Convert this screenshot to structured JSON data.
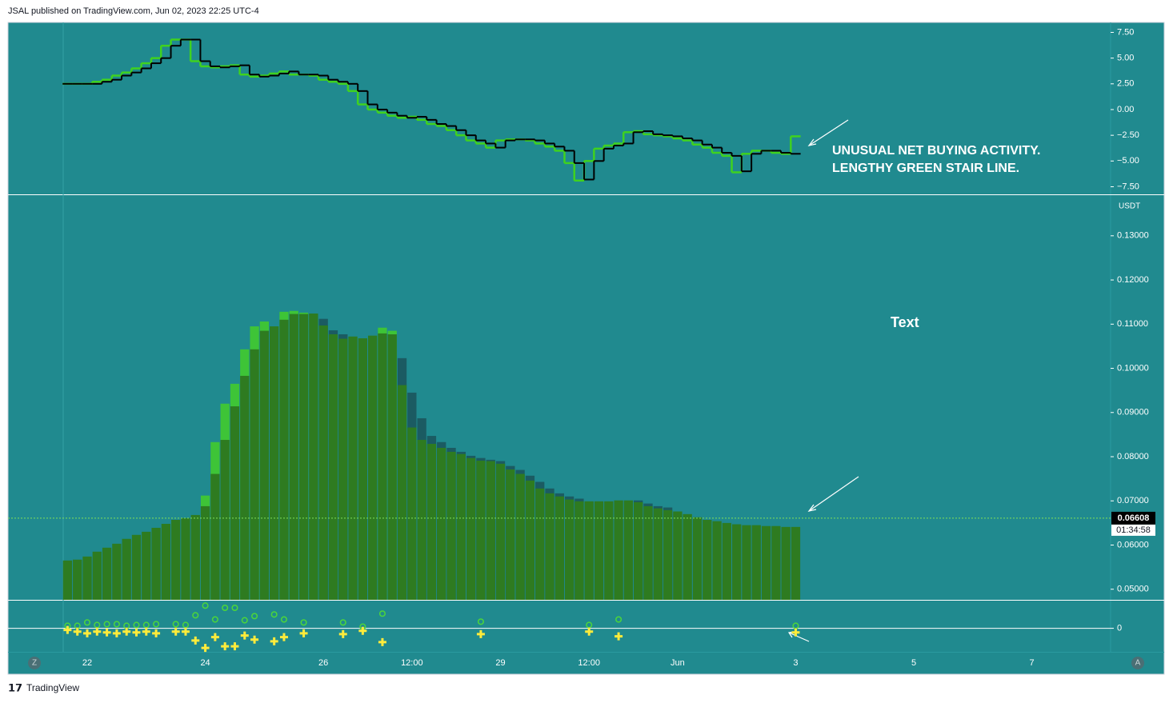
{
  "header": "JSAL published on TradingView.com, Jun 02, 2023 22:25 UTC-4",
  "footer": "TradingView",
  "buttons": [
    "Z",
    "A"
  ],
  "chart_data": [
    {
      "type": "step",
      "annotations": [
        "UNUSUAL NET BUYING ACTIVITY.",
        "LENGTHY GREEN STAIR LINE."
      ],
      "ylim": [
        -8.24,
        8.47
      ],
      "yticks": [
        {
          "value": 7.5,
          "label": "7.50"
        },
        {
          "value": 5,
          "label": "5.00"
        },
        {
          "value": 2.5,
          "label": "2.50"
        },
        {
          "value": 0,
          "label": "0.00"
        },
        {
          "value": -2.5,
          "label": "−2.50"
        },
        {
          "value": -5,
          "label": "−5.00"
        },
        {
          "value": -7.5,
          "label": "−7.50"
        }
      ],
      "series": [
        {
          "color": "#3fd21f",
          "values": [
            2.5,
            2.5,
            2.5,
            2.7,
            2.9,
            3.3,
            3.6,
            4.0,
            4.5,
            5.0,
            6.2,
            6.8,
            6.8,
            4.7,
            4.2,
            4.1,
            4.2,
            4.3,
            3.4,
            3.2,
            3.3,
            3.5,
            3.7,
            3.4,
            3.4,
            3.3,
            2.9,
            2.7,
            2.5,
            1.8,
            0.5,
            0,
            -0.3,
            -0.6,
            -0.8,
            -0.7,
            -1.0,
            -1.4,
            -1.6,
            -2.0,
            -2.5,
            -3.0,
            -3.3,
            -3.7,
            -3.0,
            -2.9,
            -2.9,
            -3.0,
            -3.3,
            -3.6,
            -4.0,
            -5.2,
            -6.9,
            -5.0,
            -3.8,
            -3.5,
            -3.3,
            -2.2,
            -2.1,
            -2.4,
            -2.5,
            -2.6,
            -2.8,
            -3.0,
            -3.4,
            -3.7,
            -4.2,
            -4.5,
            -6.1,
            -4.3,
            -4.0,
            -4.0,
            -4.2,
            -4.3,
            -2.6
          ]
        },
        {
          "color": "#000000",
          "values": [
            2.5,
            2.5,
            2.5,
            2.5,
            2.7,
            2.9,
            3.3,
            3.6,
            4.0,
            4.5,
            5.0,
            6.2,
            6.8,
            6.8,
            4.7,
            4.2,
            4.1,
            4.2,
            4.3,
            3.4,
            3.2,
            3.3,
            3.5,
            3.7,
            3.4,
            3.4,
            3.3,
            2.9,
            2.7,
            2.5,
            1.8,
            0.5,
            0,
            -0.3,
            -0.6,
            -0.8,
            -0.7,
            -1.0,
            -1.4,
            -1.6,
            -2.0,
            -2.5,
            -3.0,
            -3.3,
            -3.7,
            -3.0,
            -2.9,
            -2.9,
            -3.0,
            -3.3,
            -3.6,
            -4.0,
            -5.2,
            -6.8,
            -5.0,
            -3.8,
            -3.5,
            -3.3,
            -2.2,
            -2.1,
            -2.4,
            -2.5,
            -2.6,
            -2.8,
            -3.0,
            -3.4,
            -3.7,
            -4.2,
            -4.5,
            -6.0,
            -4.3,
            -4.0,
            -4.0,
            -4.2,
            -4.3
          ]
        }
      ]
    },
    {
      "type": "bar",
      "annotations": [
        "Text"
      ],
      "y_unit": "USDT",
      "ylim": [
        0.0476,
        0.1392
      ],
      "yticks": [
        {
          "value": 0.05,
          "label": "0.05000"
        },
        {
          "value": 0.06,
          "label": "0.06000"
        },
        {
          "value": 0.07,
          "label": "0.07000"
        },
        {
          "value": 0.08,
          "label": "0.08000"
        },
        {
          "value": 0.09,
          "label": "0.09000"
        },
        {
          "value": 0.1,
          "label": "0.10000"
        },
        {
          "value": 0.11,
          "label": "0.11000"
        },
        {
          "value": 0.12,
          "label": "0.12000"
        },
        {
          "value": 0.13,
          "label": "0.13000"
        }
      ],
      "last_value": 0.06608,
      "countdown": "01:34:58",
      "series": [
        {
          "values": [
            null,
            null,
            null,
            null,
            null,
            null,
            null,
            null,
            null,
            null,
            null,
            null,
            null,
            null,
            0.0712,
            0.0833,
            0.092,
            0.0965,
            0.1043,
            0.1095,
            0.1106,
            null,
            0.1128,
            0.113,
            0.1126,
            null,
            0.1112,
            0.1086,
            0.1077,
            null,
            null,
            null,
            0.1092,
            0.1085,
            0.1023,
            0.0945,
            0.0887,
            0.0847,
            0.0833,
            0.082,
            0.0811,
            0.0802,
            0.0797,
            0.0793,
            0.079,
            0.0779,
            0.077,
            0.0757,
            0.0743,
            0.0728,
            0.0717,
            0.071,
            0.0705,
            null,
            null,
            null,
            null,
            null,
            0.0701,
            0.0694,
            0.0688,
            0.0685,
            null,
            null,
            null,
            null,
            null,
            null,
            null,
            null,
            null,
            null,
            null,
            null,
            null
          ],
          "colors": [
            null,
            null,
            null,
            null,
            null,
            null,
            null,
            null,
            null,
            null,
            null,
            null,
            null,
            null,
            "#3ec437",
            "#3ec437",
            "#3ec437",
            "#3ec437",
            "#3ec437",
            "#3ec437",
            "#3ec437",
            null,
            "#3ec437",
            "#3ec437",
            "#3ec437",
            null,
            "#1b5b62",
            "#1b5b62",
            "#1b5b62",
            null,
            null,
            null,
            "#3ec437",
            "#3ec437",
            "#1b5b62",
            "#1b5b62",
            "#1b5b62",
            "#1b5b62",
            "#1b5b62",
            "#1b5b62",
            "#1b5b62",
            "#1b5b62",
            "#1b5b62",
            "#1b5b62",
            "#1b5b62",
            "#1b5b62",
            "#1b5b62",
            "#1b5b62",
            "#1b5b62",
            "#1b5b62",
            "#1b5b62",
            "#1b5b62",
            "#1b5b62",
            null,
            null,
            null,
            null,
            null,
            "#1b5b62",
            "#1b5b62",
            "#1b5b62",
            "#1b5b62",
            null,
            null,
            null,
            null,
            null,
            null,
            null,
            null,
            null,
            null,
            null,
            null,
            null
          ]
        },
        {
          "color": "#2e7b20",
          "values": [
            0.0565,
            0.0567,
            0.0574,
            0.0585,
            0.0594,
            0.0603,
            0.0614,
            0.0623,
            0.063,
            0.0639,
            0.0648,
            0.0657,
            0.0661,
            0.0668,
            0.0688,
            0.0761,
            0.0838,
            0.0914,
            0.0983,
            0.1043,
            0.1085,
            0.1095,
            0.111,
            0.1123,
            0.1123,
            0.1124,
            0.1097,
            0.1077,
            0.1067,
            0.1072,
            0.1068,
            0.1074,
            0.1079,
            0.1077,
            0.0962,
            0.0866,
            0.0838,
            0.0829,
            0.082,
            0.0811,
            0.0806,
            0.0797,
            0.0791,
            0.079,
            0.0784,
            0.0771,
            0.0761,
            0.0746,
            0.0728,
            0.0717,
            0.071,
            0.0703,
            0.0699,
            0.0699,
            0.0699,
            0.0699,
            0.0701,
            0.0701,
            0.0697,
            0.0688,
            0.0683,
            0.0679,
            0.0676,
            0.067,
            0.0663,
            0.0657,
            0.0654,
            0.065,
            0.0647,
            0.0645,
            0.0645,
            0.0643,
            0.0643,
            0.0641,
            0.0641
          ]
        }
      ]
    },
    {
      "type": "scatter",
      "ylim": [
        -0.85,
        1
      ],
      "yticks": [
        0
      ],
      "xlim": [
        -6.05,
        106
      ],
      "xticks": [
        {
          "value": 2,
          "label": "22"
        },
        {
          "value": 14,
          "label": "24"
        },
        {
          "value": 26,
          "label": "26"
        },
        {
          "value": 35,
          "label": "12:00"
        },
        {
          "value": 44,
          "label": "29"
        },
        {
          "value": 53,
          "label": "12:00"
        },
        {
          "value": 62,
          "label": "Jun"
        },
        {
          "value": 74,
          "label": "3"
        },
        {
          "value": 86,
          "label": "5"
        },
        {
          "value": 98,
          "label": "7"
        }
      ],
      "series": [
        {
          "marker": "circle",
          "color": "#4cd63a",
          "values": [
            0.09,
            0.09,
            0.21,
            0.12,
            0.15,
            0.15,
            0.09,
            0.12,
            0.12,
            0.15,
            null,
            0.15,
            0.12,
            0.47,
            0.82,
            0.32,
            0.74,
            0.74,
            0.29,
            0.44,
            null,
            0.5,
            0.32,
            null,
            0.21,
            null,
            null,
            null,
            0.21,
            null,
            0.06,
            null,
            0.53,
            null,
            null,
            null,
            null,
            null,
            null,
            null,
            null,
            null,
            0.24,
            null,
            null,
            null,
            null,
            null,
            null,
            null,
            null,
            null,
            null,
            0.12,
            null,
            null,
            0.32,
            null,
            null,
            null,
            null,
            null,
            null,
            null,
            null,
            null,
            null,
            null,
            null,
            null,
            null,
            null,
            null,
            null,
            0.09
          ]
        },
        {
          "marker": "cross",
          "color": "#ffeb3b",
          "values": [
            -0.06,
            -0.12,
            -0.18,
            -0.12,
            -0.15,
            -0.18,
            -0.12,
            -0.15,
            -0.12,
            -0.18,
            null,
            -0.12,
            -0.12,
            -0.44,
            -0.71,
            -0.32,
            -0.65,
            -0.65,
            -0.26,
            -0.41,
            null,
            -0.47,
            -0.32,
            null,
            -0.18,
            null,
            null,
            null,
            -0.21,
            null,
            -0.09,
            null,
            -0.5,
            null,
            null,
            null,
            null,
            null,
            null,
            null,
            null,
            null,
            -0.21,
            null,
            null,
            null,
            null,
            null,
            null,
            null,
            null,
            null,
            null,
            -0.12,
            null,
            null,
            -0.29,
            null,
            null,
            null,
            null,
            null,
            null,
            null,
            null,
            null,
            null,
            null,
            null,
            null,
            null,
            null,
            null,
            null,
            -0.15
          ]
        }
      ]
    }
  ]
}
